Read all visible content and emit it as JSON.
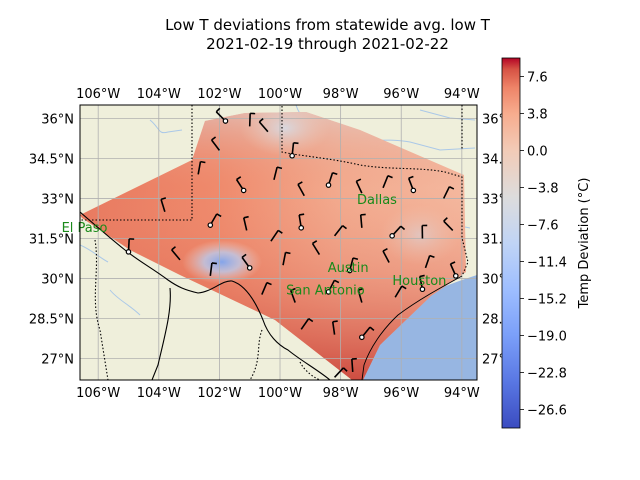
{
  "chart_data": {
    "type": "heatmap",
    "title": "Low T deviations from statewide avg. low T",
    "subtitle": "2021-02-19 through 2021-02-22",
    "x_tick_labels": [
      "106°W",
      "104°W",
      "102°W",
      "100°W",
      "98°W",
      "96°W",
      "94°W"
    ],
    "x_tick_values": [
      -106,
      -104,
      -102,
      -100,
      -98,
      -96,
      -94
    ],
    "y_tick_labels": [
      "27°N",
      "28.5°N",
      "30°N",
      "31.5°N",
      "33°N",
      "34.5°N",
      "36°N"
    ],
    "y_tick_values": [
      27,
      28.5,
      30,
      31.5,
      33,
      34.5,
      36
    ],
    "y_tick_labels_right": [
      "27°",
      "28.",
      "30°",
      "31.",
      "33°",
      "34.",
      "36°"
    ],
    "xlim": [
      -106.6,
      -93.5
    ],
    "ylim": [
      26.2,
      36.5
    ],
    "grid": true,
    "colorbar": {
      "label": "Temp Deviation (°C)",
      "range": [
        -28.5,
        9.5
      ],
      "colormap": "coolwarm",
      "tick_values": [
        7.6,
        3.8,
        0.0,
        -3.8,
        -7.6,
        -11.4,
        -15.2,
        -19.0,
        -22.8,
        -26.6
      ],
      "tick_labels": [
        "7.6",
        "3.8",
        "0.0",
        "−3.8",
        "−7.6",
        "−11.4",
        "−15.2",
        "−19.0",
        "−22.8",
        "−26.6"
      ]
    },
    "cities": [
      {
        "name": "El Paso",
        "lon": -106.45,
        "lat": 31.75
      },
      {
        "name": "Dallas",
        "lon": -96.8,
        "lat": 32.8
      },
      {
        "name": "Austin",
        "lon": -97.75,
        "lat": 30.25
      },
      {
        "name": "San Antonio",
        "lon": -98.5,
        "lat": 29.4
      },
      {
        "name": "Houston",
        "lon": -95.4,
        "lat": 29.75
      }
    ],
    "stations": [
      {
        "lon": -101.8,
        "lat": 35.9,
        "dev": 2.5
      },
      {
        "lon": -101.0,
        "lat": 35.7,
        "dev": 1.5
      },
      {
        "lon": -100.4,
        "lat": 35.5,
        "dev": 0.0
      },
      {
        "lon": -99.6,
        "lat": 34.6,
        "dev": -2.0
      },
      {
        "lon": -102.0,
        "lat": 34.8,
        "dev": 3.5
      },
      {
        "lon": -102.7,
        "lat": 33.9,
        "dev": 4.5
      },
      {
        "lon": -101.2,
        "lat": 33.3,
        "dev": 3.0
      },
      {
        "lon": -100.2,
        "lat": 33.7,
        "dev": 2.0
      },
      {
        "lon": -99.2,
        "lat": 33.1,
        "dev": 0.5
      },
      {
        "lon": -98.4,
        "lat": 33.5,
        "dev": -1.0
      },
      {
        "lon": -97.3,
        "lat": 33.2,
        "dev": -2.5
      },
      {
        "lon": -96.6,
        "lat": 33.4,
        "dev": -3.0
      },
      {
        "lon": -95.6,
        "lat": 33.3,
        "dev": -4.0
      },
      {
        "lon": -94.6,
        "lat": 33.0,
        "dev": -4.0
      },
      {
        "lon": -103.8,
        "lat": 32.5,
        "dev": 4.5
      },
      {
        "lon": -102.3,
        "lat": 32.0,
        "dev": 2.5
      },
      {
        "lon": -101.1,
        "lat": 31.8,
        "dev": 3.5
      },
      {
        "lon": -100.3,
        "lat": 31.4,
        "dev": 4.0
      },
      {
        "lon": -99.3,
        "lat": 31.9,
        "dev": 1.5
      },
      {
        "lon": -98.2,
        "lat": 31.6,
        "dev": 0.5
      },
      {
        "lon": -97.3,
        "lat": 31.9,
        "dev": -2.0
      },
      {
        "lon": -96.3,
        "lat": 31.6,
        "dev": -1.5
      },
      {
        "lon": -95.3,
        "lat": 31.5,
        "dev": -2.5
      },
      {
        "lon": -94.3,
        "lat": 31.8,
        "dev": -1.5
      },
      {
        "lon": -105.0,
        "lat": 31.0,
        "dev": 5.5
      },
      {
        "lon": -103.3,
        "lat": 30.7,
        "dev": 3.0
      },
      {
        "lon": -102.3,
        "lat": 30.1,
        "dev": -11.0
      },
      {
        "lon": -101.0,
        "lat": 30.4,
        "dev": 3.0
      },
      {
        "lon": -99.9,
        "lat": 30.5,
        "dev": 2.0
      },
      {
        "lon": -98.7,
        "lat": 30.9,
        "dev": 1.5
      },
      {
        "lon": -97.7,
        "lat": 30.3,
        "dev": 0.5
      },
      {
        "lon": -96.4,
        "lat": 30.6,
        "dev": -0.5
      },
      {
        "lon": -95.2,
        "lat": 30.4,
        "dev": -1.5
      },
      {
        "lon": -94.2,
        "lat": 30.1,
        "dev": 0.5
      },
      {
        "lon": -100.6,
        "lat": 29.4,
        "dev": 5.0
      },
      {
        "lon": -99.5,
        "lat": 29.1,
        "dev": 3.5
      },
      {
        "lon": -98.4,
        "lat": 29.5,
        "dev": 3.0
      },
      {
        "lon": -97.3,
        "lat": 29.1,
        "dev": 2.0
      },
      {
        "lon": -96.2,
        "lat": 29.3,
        "dev": 1.5
      },
      {
        "lon": -95.3,
        "lat": 29.6,
        "dev": 0.5
      },
      {
        "lon": -99.3,
        "lat": 28.1,
        "dev": 6.0
      },
      {
        "lon": -98.2,
        "lat": 27.9,
        "dev": 5.0
      },
      {
        "lon": -97.3,
        "lat": 27.8,
        "dev": 6.0
      },
      {
        "lon": -97.6,
        "lat": 26.5,
        "dev": 7.5
      },
      {
        "lon": -98.2,
        "lat": 26.3,
        "dev": 7.0
      }
    ]
  }
}
